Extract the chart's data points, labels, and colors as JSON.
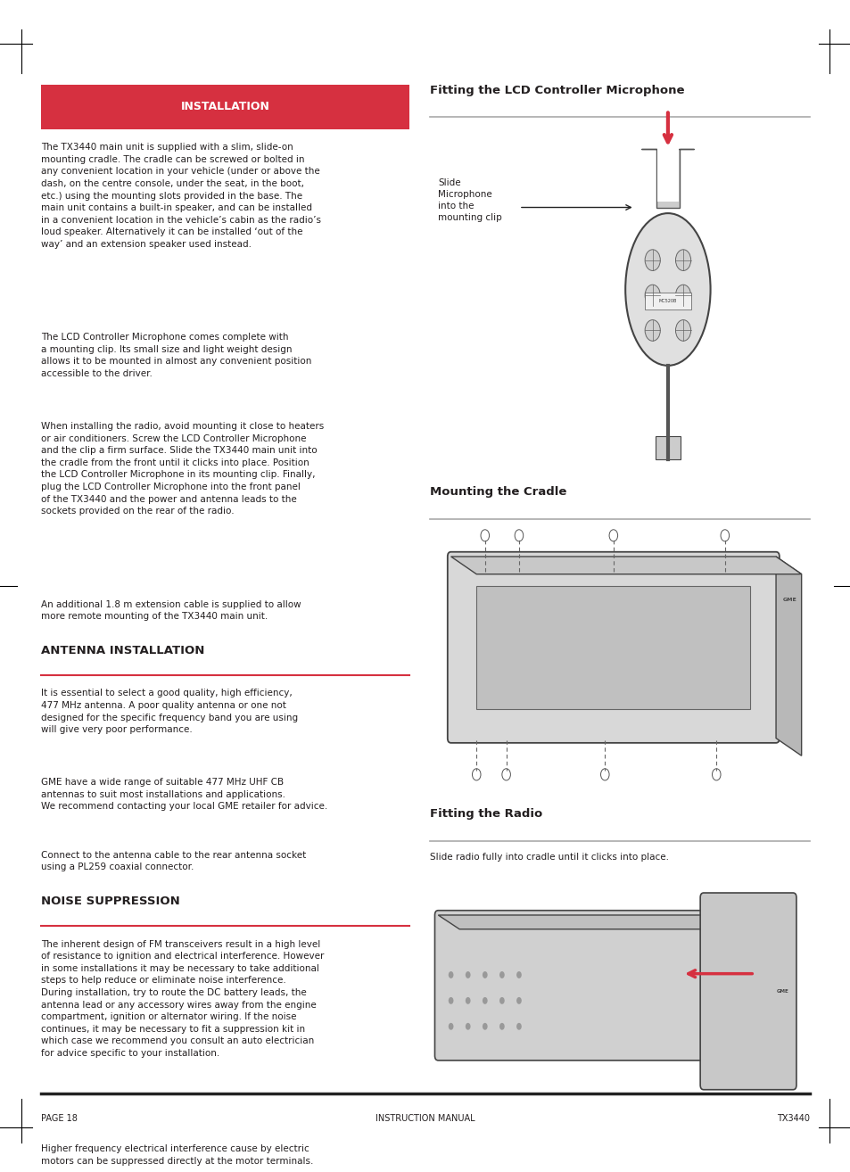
{
  "page_bg": "#ffffff",
  "header_bg": "#d63040",
  "header_text": "INSTALLATION",
  "header_text_color": "#ffffff",
  "section_installation": {
    "heading": "INSTALLATION",
    "para1": "The TX3440 main unit is supplied with a slim, slide-on\nmounting cradle. The cradle can be screwed or bolted in\nany convenient location in your vehicle (under or above the\ndash, on the centre console, under the seat, in the boot,\netc.) using the mounting slots provided in the base. The\nmain unit contains a built-in speaker, and can be installed\nin a convenient location in the vehicle’s cabin as the radio’s\nloud speaker. Alternatively it can be installed ‘out of the\nway’ and an extension speaker used instead.",
    "para2": "The LCD Controller Microphone comes complete with\na mounting clip. Its small size and light weight design\nallows it to be mounted in almost any convenient position\naccessible to the driver.",
    "para3": "When installing the radio, avoid mounting it close to heaters\nor air conditioners. Screw the LCD Controller Microphone\nand the clip a firm surface. Slide the TX3440 main unit into\nthe cradle from the front until it clicks into place. Position\nthe LCD Controller Microphone in its mounting clip. Finally,\nplug the LCD Controller Microphone into the front panel\nof the TX3440 and the power and antenna leads to the\nsockets provided on the rear of the radio.",
    "para4": "An additional 1.8 m extension cable is supplied to allow\nmore remote mounting of the TX3440 main unit."
  },
  "section_antenna": {
    "heading": "ANTENNA INSTALLATION",
    "para1": "It is essential to select a good quality, high efficiency,\n477 MHz antenna. A poor quality antenna or one not\ndesigned for the specific frequency band you are using\nwill give very poor performance.",
    "para2": "GME have a wide range of suitable 477 MHz UHF CB\nantennas to suit most installations and applications.\nWe recommend contacting your local GME retailer for advice.",
    "para3": "Connect to the antenna cable to the rear antenna socket\nusing a PL259 coaxial connector."
  },
  "section_noise": {
    "heading": "NOISE SUPPRESSION",
    "para1": "The inherent design of FM transceivers result in a high level\nof resistance to ignition and electrical interference. However\nin some installations it may be necessary to take additional\nsteps to help reduce or eliminate noise interference.\nDuring installation, try to route the DC battery leads, the\nantenna lead or any accessory wires away from the engine\ncompartment, ignition or alternator wiring. If the noise\ncontinues, it may be necessary to fit a suppression kit in\nwhich case we recommend you consult an auto electrician\nfor advice specific to your installation.",
    "para2": "Higher frequency electrical interference cause by electric\nmotors can be suppressed directly at the motor terminals."
  },
  "right_heading1": "Fitting the LCD Controller Microphone",
  "right_heading2": "Mounting the Cradle",
  "right_heading3": "Fitting the Radio",
  "right_para3": "Slide radio fully into cradle until it clicks into place.",
  "footer_left": "PAGE 18",
  "footer_center": "INSTRUCTION MANUAL",
  "footer_right": "TX3440",
  "slide_label": "Slide\nMicrophone\ninto the\nmounting clip",
  "red_color": "#d63040",
  "text_color": "#231f20",
  "body_fontsize": 7.5,
  "heading_fontsize": 9.5
}
